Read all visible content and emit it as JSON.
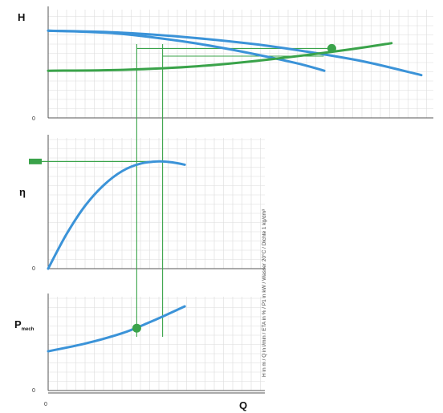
{
  "chart_data": {
    "type": "line",
    "grid": true,
    "colors": {
      "pump_curve": "#3b93d8",
      "system_curve": "#3aa34a",
      "construction": "#3aa34a",
      "grid": "#dcdcdc",
      "axis": "#555555"
    },
    "x_axis": {
      "label": "Q",
      "origin_label": "0",
      "xlim": [
        0,
        1
      ]
    },
    "side_note": "H in m / Q in l/min / ETA in % / P1 in kW / Wasser 20°C / Dichte 1 kg/dm³",
    "panels": [
      {
        "id": "head",
        "ylabel": "H",
        "origin_label": "0",
        "ylim": [
          0,
          1
        ],
        "series": [
          {
            "role": "pump_curve",
            "x": [
              0,
              0.18,
              0.36,
              0.55,
              0.7,
              0.85,
              1.0
            ],
            "y": [
              0.98,
              0.96,
              0.91,
              0.83,
              0.74,
              0.63,
              0.48
            ]
          },
          {
            "role": "pump_curve",
            "x": [
              0,
              0.18,
              0.36,
              0.5,
              0.66,
              0.74
            ],
            "y": [
              0.98,
              0.95,
              0.86,
              0.76,
              0.62,
              0.53
            ]
          },
          {
            "role": "system_curve",
            "x": [
              0,
              0.2,
              0.4,
              0.6,
              0.81,
              0.92
            ],
            "y": [
              0.53,
              0.54,
              0.58,
              0.66,
              0.77,
              0.84
            ]
          }
        ],
        "markers": [
          {
            "role": "operating_point",
            "x": 0.76,
            "y": 0.78
          }
        ]
      },
      {
        "id": "efficiency",
        "ylabel": "η",
        "origin_label": "0",
        "ylim": [
          0,
          1
        ],
        "series": [
          {
            "role": "pump_curve",
            "x": [
              0,
              0.1,
              0.2,
              0.3,
              0.4,
              0.5,
              0.6,
              0.68,
              0.74
            ],
            "y": [
              0.0,
              0.32,
              0.58,
              0.77,
              0.9,
              0.97,
              0.99,
              0.98,
              0.96
            ]
          }
        ],
        "markers": []
      },
      {
        "id": "power",
        "ylabel": "P",
        "ylabel_sub": "mech",
        "origin_label": "0",
        "ylim": [
          0,
          1
        ],
        "series": [
          {
            "role": "pump_curve",
            "x": [
              0,
              0.2,
              0.4,
              0.54,
              0.62,
              0.74
            ],
            "y": [
              0.3,
              0.42,
              0.58,
              0.74,
              0.84,
              1.0
            ]
          }
        ],
        "markers": [
          {
            "role": "operating_point",
            "x": 0.48,
            "y": 0.66
          }
        ]
      }
    ],
    "guides": {
      "verticals_x": [
        0.48,
        0.62
      ],
      "efficiency_level": 0.99
    }
  }
}
